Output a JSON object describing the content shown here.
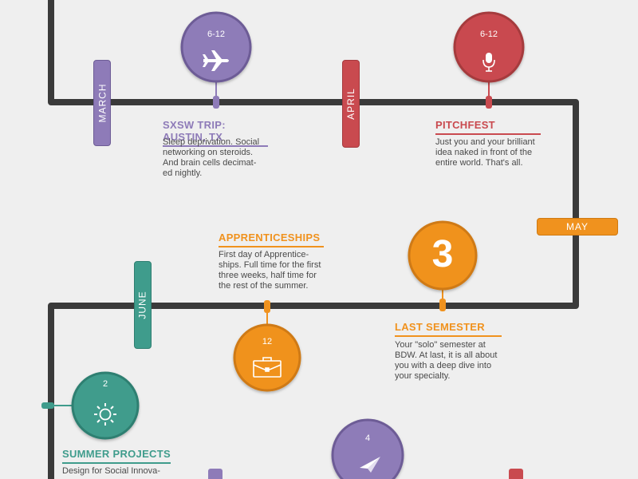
{
  "colors": {
    "track": "#3a3a3a",
    "purple": "#8e7bb8",
    "red": "#c94a4f",
    "orange": "#f0921e",
    "teal": "#3f9c8c",
    "text": "#4a4a4a"
  },
  "months": {
    "march": "MARCH",
    "april": "APRIL",
    "may": "MAY",
    "june": "JUNE"
  },
  "events": {
    "sxsw": {
      "date": "6-12",
      "icon": "airplane-icon",
      "title": "SXSW TRIP: AUSTIN, TX",
      "lines": [
        "Sleep deprivation. Social",
        "networking on steroids.",
        "And brain cells decimat-",
        "ed nightly."
      ]
    },
    "pitchfest": {
      "date": "6-12",
      "icon": "microphone-icon",
      "title": "PITCHFEST",
      "lines": [
        "Just you and your brilliant",
        "idea naked in front of the",
        "entire world. That's all."
      ]
    },
    "last_semester": {
      "date": "3",
      "title": "LAST SEMESTER",
      "lines": [
        "Your \"solo\" semester at",
        "BDW. At last, it is all about",
        "you with a deep dive into",
        "your specialty."
      ]
    },
    "apprenticeships": {
      "date": "12",
      "icon": "briefcase-icon",
      "title": "APPRENTICESHIPS",
      "lines": [
        "First day of Apprentice-",
        "ships.  Full time for the first",
        "three weeks, half time for",
        "the rest of the summer."
      ]
    },
    "summer_projects": {
      "date": "2",
      "icon": "sun-icon",
      "title": "SUMMER PROJECTS",
      "lines": [
        "Design for Social Innova-"
      ]
    },
    "next_event": {
      "date": "4",
      "icon": "paper-plane-icon"
    }
  }
}
